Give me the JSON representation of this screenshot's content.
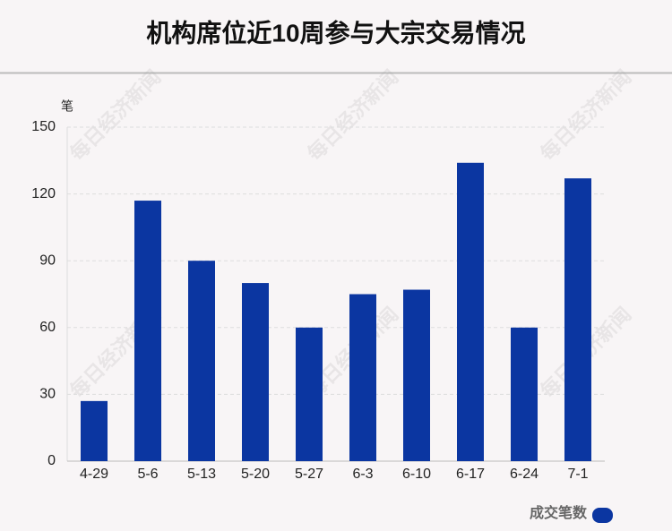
{
  "chart_data": {
    "type": "bar",
    "title": "机构席位近10周参与大宗交易情况",
    "y_label": "笔",
    "categories": [
      "4-29",
      "5-6",
      "5-13",
      "5-20",
      "5-27",
      "6-3",
      "6-10",
      "6-17",
      "6-24",
      "7-1"
    ],
    "series": [
      {
        "name": "成交笔数",
        "color": "#0b36a1",
        "values": [
          27,
          117,
          90,
          80,
          60,
          75,
          77,
          134,
          60,
          127
        ]
      }
    ],
    "ylim": [
      0,
      150
    ],
    "yticks": [
      0,
      30,
      60,
      90,
      120,
      150
    ],
    "grid": true,
    "legend": "bottom-right",
    "watermark": "每日经济新闻"
  }
}
